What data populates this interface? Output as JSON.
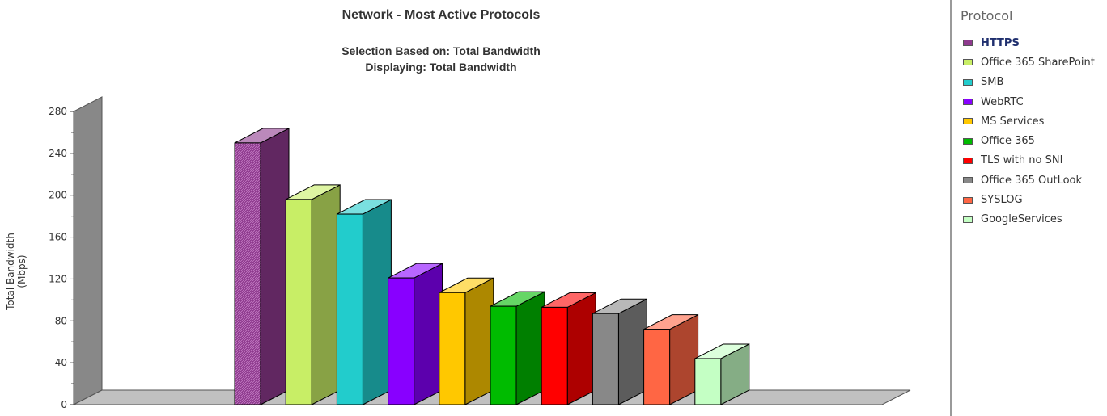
{
  "chart_data": {
    "type": "bar",
    "title": "Network - Most Active Protocols",
    "subtitles": [
      "Selection Based on: Total Bandwidth",
      "Displaying: Total Bandwidth"
    ],
    "xlabel": "",
    "ylabel": "Total Bandwidth (Mbps)",
    "ylim": [
      0,
      280
    ],
    "yticks": [
      0,
      40,
      80,
      120,
      160,
      200,
      240,
      280
    ],
    "grid": false,
    "legend_position": "right",
    "legend_title": "Protocol",
    "categories": [
      "HTTPS",
      "Office 365 SharePoint",
      "SMB",
      "WebRTC",
      "MS Services",
      "Office 365",
      "TLS with no SNI",
      "Office 365 OutLook",
      "SYSLOG",
      "GoogleServices"
    ],
    "values": [
      250,
      196,
      182,
      121,
      107,
      94,
      93,
      87,
      72,
      44
    ],
    "colors": [
      "#8e3a8e",
      "#c8ee66",
      "#22cccc",
      "#8800ff",
      "#ffc800",
      "#00bb00",
      "#ff0000",
      "#888888",
      "#ff6644",
      "#c4ffc4"
    ],
    "selected": "HTTPS"
  }
}
